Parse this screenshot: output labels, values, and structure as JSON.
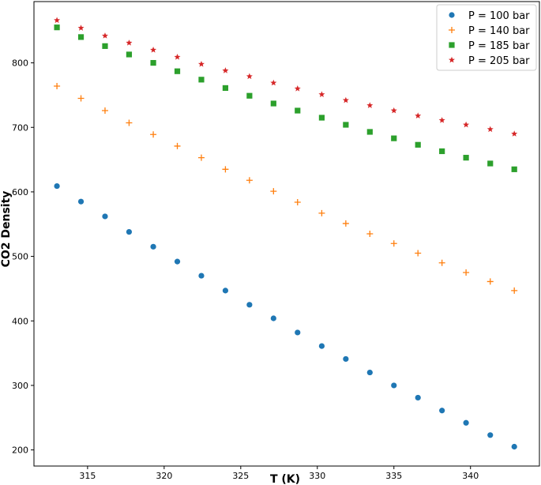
{
  "chart_data": {
    "type": "scatter",
    "xlabel": "T (K)",
    "ylabel": "CO2 Density",
    "xlim": [
      311.5,
      344.5
    ],
    "ylim": [
      175,
      895
    ],
    "xticks": [
      315,
      320,
      325,
      330,
      335,
      340
    ],
    "yticks": [
      200,
      300,
      400,
      500,
      600,
      700,
      800
    ],
    "grid": false,
    "legend_position": "top-right",
    "x": [
      313.0,
      314.57,
      316.14,
      317.71,
      319.29,
      320.86,
      322.43,
      324.0,
      325.57,
      327.14,
      328.71,
      330.29,
      331.86,
      333.43,
      335.0,
      336.57,
      338.14,
      339.71,
      341.29,
      342.86
    ],
    "series": [
      {
        "name": "P = 100 bar",
        "marker": "circle",
        "color": "#1f77b4",
        "values": [
          609,
          585,
          562,
          538,
          515,
          492,
          470,
          447,
          425,
          404,
          382,
          361,
          341,
          320,
          300,
          281,
          261,
          242,
          223,
          205
        ]
      },
      {
        "name": "P = 140 bar",
        "marker": "plus",
        "color": "#ff7f0e",
        "values": [
          764,
          745,
          726,
          707,
          689,
          671,
          653,
          635,
          618,
          601,
          584,
          567,
          551,
          535,
          520,
          505,
          490,
          475,
          461,
          447
        ]
      },
      {
        "name": "P = 185 bar",
        "marker": "square",
        "color": "#2ca02c",
        "values": [
          855,
          840,
          826,
          813,
          800,
          787,
          774,
          761,
          749,
          737,
          726,
          715,
          704,
          693,
          683,
          673,
          663,
          653,
          644,
          635
        ]
      },
      {
        "name": "P = 205 bar",
        "marker": "star",
        "color": "#d62728",
        "values": [
          866,
          854,
          842,
          831,
          820,
          809,
          798,
          788,
          779,
          769,
          760,
          751,
          742,
          734,
          726,
          718,
          711,
          704,
          697,
          690
        ]
      }
    ]
  }
}
